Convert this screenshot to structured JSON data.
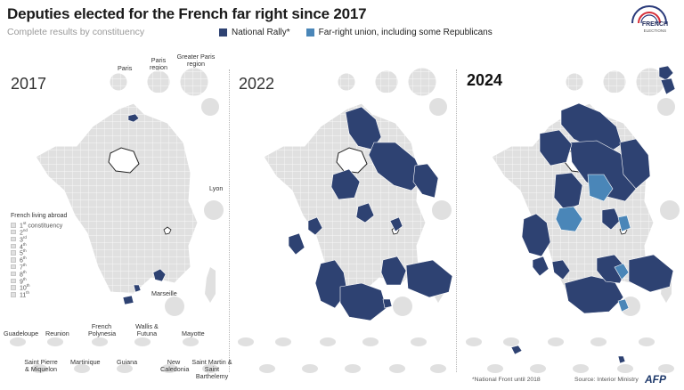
{
  "header": {
    "title": "Deputies elected for the French far right since 2017",
    "subtitle": "Complete results by constituency"
  },
  "legend": {
    "items": [
      {
        "label": "National Rally*",
        "color": "#2e4272"
      },
      {
        "label": "Far-right union, including some Republicans",
        "color": "#4a86b8"
      }
    ]
  },
  "logo": {
    "line1": "FRENCH",
    "line2": "ELECTIONS"
  },
  "colors": {
    "base": "#e0e0e0",
    "border": "#ffffff",
    "rn": "#2e4272",
    "union": "#4a86b8"
  },
  "panels": [
    {
      "year": "2017",
      "bold": false
    },
    {
      "year": "2022",
      "bold": false
    },
    {
      "year": "2024",
      "bold": true
    }
  ],
  "inset_labels": {
    "paris": "Paris",
    "paris_region": "Paris region",
    "greater_paris": "Greater Paris region",
    "lyon": "Lyon",
    "marseille": "Marseille"
  },
  "abroad": {
    "title": "French living abroad",
    "rows": [
      {
        "num": "1",
        "suf": "st",
        "text": " constituency"
      },
      {
        "num": "2",
        "suf": "nd",
        "text": ""
      },
      {
        "num": "3",
        "suf": "rd",
        "text": ""
      },
      {
        "num": "4",
        "suf": "th",
        "text": ""
      },
      {
        "num": "5",
        "suf": "th",
        "text": ""
      },
      {
        "num": "6",
        "suf": "th",
        "text": ""
      },
      {
        "num": "7",
        "suf": "th",
        "text": ""
      },
      {
        "num": "8",
        "suf": "th",
        "text": ""
      },
      {
        "num": "9",
        "suf": "th",
        "text": ""
      },
      {
        "num": "10",
        "suf": "th",
        "text": ""
      },
      {
        "num": "11",
        "suf": "th",
        "text": ""
      }
    ]
  },
  "overseas": {
    "guadeloupe": "Guadeloupe",
    "reunion": "Reunion",
    "polynesia": "French Polynesia",
    "wallis": "Wallis & Futuna",
    "mayotte": "Mayotte",
    "stpierre": "Saint Pierre & Miquelon",
    "martinique": "Martinique",
    "guiana": "Guiana",
    "caledonia": "New Caledonia",
    "stmartin": "Saint Martin & Saint Barthelemy"
  },
  "footer": {
    "footnote": "*National Front until 2018",
    "source": "Source: Interior Ministry",
    "agency": "AFP"
  }
}
